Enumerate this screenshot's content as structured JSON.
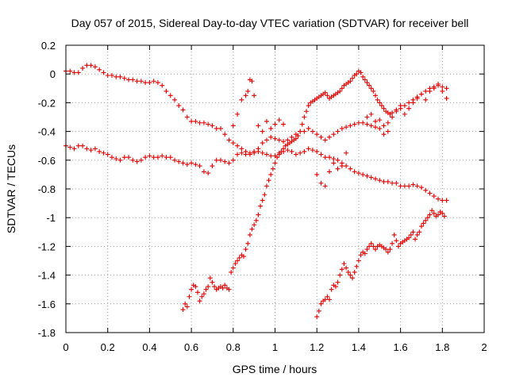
{
  "chart_data": {
    "type": "scatter",
    "title": "Day 057 of 2015, Sidereal Day-to-day VTEC variation (SDTVAR) for receiver bell",
    "xlabel": "GPS time / hours",
    "ylabel": "SDTVAR / TECUs",
    "xlim": [
      0,
      2
    ],
    "ylim": [
      -1.8,
      0.2
    ],
    "xticks": [
      0,
      0.2,
      0.4,
      0.6,
      0.8,
      1,
      1.2,
      1.4,
      1.6,
      1.8,
      2
    ],
    "xtick_labels": [
      "0",
      "0.2",
      "0.4",
      "0.6",
      "0.8",
      "1",
      "1.2",
      "1.4",
      "1.6",
      "1.8",
      "2"
    ],
    "yticks": [
      0.2,
      0,
      -0.2,
      -0.4,
      -0.6,
      -0.8,
      -1,
      -1.2,
      -1.4,
      -1.6,
      -1.8
    ],
    "ytick_labels": [
      "0.2",
      "0",
      "-0.2",
      "-0.4",
      "-0.6",
      "-0.8",
      "-1",
      "-1.2",
      "-1.4",
      "-1.6",
      "-1.8"
    ],
    "grid": true,
    "marker": "+",
    "color": "#e00000",
    "series": [
      {
        "x": [
          0.0,
          0.02,
          0.04,
          0.06,
          0.08,
          0.1,
          0.12,
          0.14,
          0.16,
          0.18,
          0.2,
          0.22,
          0.24,
          0.26,
          0.28,
          0.3,
          0.32,
          0.34,
          0.36,
          0.38,
          0.4,
          0.42,
          0.44,
          0.46,
          0.48,
          0.5,
          0.52,
          0.54,
          0.56,
          0.58,
          0.6,
          0.62,
          0.64,
          0.66,
          0.68,
          0.7,
          0.72,
          0.74,
          0.76,
          0.78,
          0.8,
          0.82,
          0.84,
          0.86,
          0.88,
          0.9,
          0.92,
          0.94,
          0.96,
          0.98,
          1.0,
          1.02,
          1.04,
          1.06,
          1.08,
          1.1,
          1.12,
          1.14,
          1.16,
          1.18,
          1.2,
          1.22,
          1.24,
          1.26,
          1.28,
          1.3,
          1.32,
          1.34,
          1.36,
          1.38,
          1.4,
          1.42,
          1.44,
          1.46,
          1.48,
          1.5,
          1.52,
          1.54,
          1.56,
          1.58,
          1.6,
          1.62,
          1.64,
          1.66,
          1.68,
          1.7,
          1.72,
          1.74,
          1.76,
          1.78,
          1.8,
          1.82
        ],
        "y": [
          0.02,
          0.02,
          0.01,
          0.01,
          0.04,
          0.06,
          0.06,
          0.05,
          0.03,
          0.01,
          -0.01,
          -0.01,
          -0.02,
          -0.02,
          -0.03,
          -0.04,
          -0.04,
          -0.05,
          -0.05,
          -0.06,
          -0.06,
          -0.05,
          -0.06,
          -0.08,
          -0.12,
          -0.15,
          -0.18,
          -0.22,
          -0.25,
          -0.3,
          -0.33,
          -0.33,
          -0.34,
          -0.34,
          -0.35,
          -0.36,
          -0.38,
          -0.38,
          -0.42,
          -0.46,
          -0.48,
          -0.5,
          -0.52,
          -0.54,
          -0.55,
          -0.54,
          -0.52,
          -0.48,
          -0.46,
          -0.44,
          -0.45,
          -0.46,
          -0.47,
          -0.46,
          -0.44,
          -0.42,
          -0.4,
          -0.4,
          -0.38,
          -0.4,
          -0.42,
          -0.44,
          -0.46,
          -0.44,
          -0.42,
          -0.4,
          -0.38,
          -0.37,
          -0.36,
          -0.35,
          -0.34,
          -0.34,
          -0.35,
          -0.36,
          -0.37,
          -0.38,
          -0.36,
          -0.34,
          -0.3,
          -0.26,
          -0.24,
          -0.22,
          -0.2,
          -0.18,
          -0.16,
          -0.14,
          -0.12,
          -0.1,
          -0.09,
          -0.08,
          -0.09,
          -0.1
        ]
      },
      {
        "x": [
          0.0,
          0.02,
          0.04,
          0.06,
          0.08,
          0.1,
          0.12,
          0.14,
          0.16,
          0.18,
          0.2,
          0.22,
          0.24,
          0.26,
          0.28,
          0.3,
          0.32,
          0.34,
          0.36,
          0.38,
          0.4,
          0.42,
          0.44,
          0.46,
          0.48,
          0.5,
          0.52,
          0.54,
          0.56,
          0.58,
          0.6,
          0.62,
          0.64,
          0.66,
          0.68,
          0.7,
          0.72,
          0.74,
          0.76,
          0.78,
          0.8,
          0.82,
          0.84,
          0.86,
          0.88,
          0.9,
          0.92,
          0.94,
          0.96,
          0.98,
          1.0,
          1.02,
          1.04,
          1.06,
          1.08,
          1.1,
          1.12,
          1.14,
          1.16,
          1.18,
          1.2,
          1.22,
          1.24,
          1.26,
          1.28,
          1.3,
          1.32,
          1.34,
          1.36,
          1.38,
          1.4,
          1.42,
          1.44,
          1.46,
          1.48,
          1.5,
          1.52,
          1.54,
          1.56,
          1.58,
          1.6,
          1.62,
          1.64,
          1.66,
          1.68,
          1.7,
          1.72,
          1.74,
          1.76,
          1.78,
          1.8,
          1.82
        ],
        "y": [
          -0.5,
          -0.51,
          -0.52,
          -0.5,
          -0.5,
          -0.52,
          -0.53,
          -0.52,
          -0.54,
          -0.55,
          -0.56,
          -0.58,
          -0.59,
          -0.6,
          -0.58,
          -0.58,
          -0.6,
          -0.61,
          -0.6,
          -0.58,
          -0.57,
          -0.58,
          -0.58,
          -0.57,
          -0.58,
          -0.58,
          -0.6,
          -0.61,
          -0.62,
          -0.63,
          -0.62,
          -0.63,
          -0.64,
          -0.68,
          -0.69,
          -0.64,
          -0.6,
          -0.6,
          -0.61,
          -0.62,
          -0.6,
          -0.56,
          -0.55,
          -0.56,
          -0.56,
          -0.55,
          -0.54,
          -0.55,
          -0.56,
          -0.57,
          -0.57,
          -0.55,
          -0.54,
          -0.53,
          -0.54,
          -0.56,
          -0.55,
          -0.54,
          -0.52,
          -0.53,
          -0.54,
          -0.56,
          -0.58,
          -0.58,
          -0.59,
          -0.6,
          -0.62,
          -0.64,
          -0.66,
          -0.68,
          -0.69,
          -0.7,
          -0.71,
          -0.72,
          -0.73,
          -0.74,
          -0.75,
          -0.75,
          -0.76,
          -0.76,
          -0.78,
          -0.78,
          -0.78,
          -0.77,
          -0.78,
          -0.79,
          -0.81,
          -0.83,
          -0.85,
          -0.87,
          -0.88,
          -0.88
        ]
      },
      {
        "x": [
          0.56,
          0.57,
          0.58,
          0.59,
          0.6,
          0.61,
          0.62,
          0.63,
          0.64,
          0.65,
          0.66,
          0.67,
          0.68,
          0.69,
          0.7,
          0.71,
          0.72,
          0.73,
          0.74,
          0.75,
          0.76,
          0.77,
          0.78,
          0.79,
          0.8,
          0.81,
          0.82,
          0.83,
          0.84,
          0.85,
          0.86,
          0.87,
          0.88,
          0.89,
          0.9,
          0.91,
          0.92,
          0.93,
          0.94,
          0.95,
          0.96,
          0.97,
          0.98,
          0.99,
          1.0,
          1.01,
          1.02,
          1.03,
          1.04,
          1.05,
          1.06,
          1.07,
          1.08,
          1.09,
          1.1,
          1.11,
          1.12,
          1.13,
          1.14,
          1.15,
          1.16,
          1.17,
          1.18,
          1.19,
          1.2,
          1.21,
          1.22,
          1.23,
          1.24,
          1.25,
          1.26,
          1.27,
          1.28,
          1.29,
          1.3,
          1.31,
          1.32,
          1.33,
          1.34,
          1.35,
          1.36,
          1.37,
          1.38,
          1.39,
          1.4,
          1.41,
          1.42,
          1.43,
          1.44,
          1.45,
          1.46,
          1.47,
          1.48,
          1.49,
          1.5,
          1.51,
          1.52,
          1.53,
          1.54,
          1.55,
          1.56
        ],
        "y": [
          -1.64,
          -1.6,
          -1.62,
          -1.55,
          -1.5,
          -1.47,
          -1.48,
          -1.52,
          -1.58,
          -1.55,
          -1.53,
          -1.5,
          -1.48,
          -1.42,
          -1.45,
          -1.48,
          -1.5,
          -1.49,
          -1.48,
          -1.49,
          -1.47,
          -1.49,
          -1.5,
          -1.38,
          -1.35,
          -1.32,
          -1.3,
          -1.28,
          -1.26,
          -1.27,
          -1.22,
          -1.18,
          -1.12,
          -1.08,
          -1.05,
          -1.02,
          -0.98,
          -0.92,
          -0.88,
          -0.84,
          -0.78,
          -0.74,
          -0.7,
          -0.66,
          -0.62,
          -0.58,
          -0.56,
          -0.54,
          -0.52,
          -0.5,
          -0.49,
          -0.48,
          -0.47,
          -0.46,
          -0.45,
          -0.43,
          -0.4,
          -0.35,
          -0.3,
          -0.26,
          -0.22,
          -0.2,
          -0.19,
          -0.18,
          -0.17,
          -0.16,
          -0.15,
          -0.14,
          -0.13,
          -0.15,
          -0.17,
          -0.16,
          -0.15,
          -0.14,
          -0.13,
          -0.12,
          -0.1,
          -0.08,
          -0.07,
          -0.06,
          -0.05,
          -0.03,
          -0.01,
          0.0,
          0.02,
          0.01,
          -0.02,
          -0.04,
          -0.06,
          -0.08,
          -0.1,
          -0.12,
          -0.15,
          -0.18,
          -0.2,
          -0.22,
          -0.24,
          -0.26,
          -0.27,
          -0.28,
          -0.3
        ]
      },
      {
        "x": [
          1.2,
          1.21,
          1.22,
          1.23,
          1.24,
          1.25,
          1.26,
          1.27,
          1.28,
          1.29,
          1.3,
          1.31,
          1.32,
          1.33,
          1.34,
          1.35,
          1.36,
          1.37,
          1.38,
          1.39,
          1.4,
          1.41,
          1.42,
          1.43,
          1.44,
          1.45,
          1.46,
          1.47,
          1.48,
          1.49,
          1.5,
          1.51,
          1.52,
          1.53,
          1.54,
          1.55,
          1.56,
          1.57,
          1.58,
          1.59,
          1.6,
          1.61,
          1.62,
          1.63,
          1.64,
          1.65,
          1.66,
          1.67,
          1.68,
          1.69,
          1.7,
          1.71,
          1.72,
          1.73,
          1.74,
          1.75,
          1.76,
          1.77,
          1.78,
          1.79,
          1.8,
          1.81
        ],
        "y": [
          -1.69,
          -1.65,
          -1.6,
          -1.58,
          -1.57,
          -1.55,
          -1.57,
          -1.5,
          -1.47,
          -1.48,
          -1.45,
          -1.4,
          -1.36,
          -1.32,
          -1.35,
          -1.38,
          -1.4,
          -1.42,
          -1.38,
          -1.34,
          -1.3,
          -1.26,
          -1.24,
          -1.25,
          -1.22,
          -1.2,
          -1.18,
          -1.2,
          -1.22,
          -1.2,
          -1.19,
          -1.2,
          -1.21,
          -1.22,
          -1.24,
          -1.22,
          -1.18,
          -1.12,
          -1.16,
          -1.2,
          -1.18,
          -1.17,
          -1.16,
          -1.15,
          -1.14,
          -1.12,
          -1.1,
          -1.15,
          -1.12,
          -1.1,
          -1.06,
          -1.04,
          -1.02,
          -1.0,
          -0.98,
          -0.95,
          -0.97,
          -0.99,
          -0.98,
          -0.96,
          -0.97,
          -0.99
        ]
      },
      {
        "x": [
          0.8,
          0.82,
          0.84,
          0.86,
          0.87,
          0.88,
          0.89,
          0.9,
          0.92,
          0.94,
          0.96,
          0.98,
          1.0,
          1.02,
          1.04,
          1.2,
          1.22,
          1.24,
          1.26,
          1.28,
          1.3,
          1.32,
          1.34,
          1.44,
          1.46,
          1.48,
          1.5,
          1.52,
          1.54,
          1.56,
          1.58,
          1.6,
          1.62,
          1.64,
          1.66,
          1.68,
          1.7,
          1.72,
          1.74,
          1.76,
          1.78,
          1.8,
          1.82
        ],
        "y": [
          -0.36,
          -0.28,
          -0.18,
          -0.15,
          -0.12,
          -0.04,
          -0.05,
          -0.15,
          -0.36,
          -0.4,
          -0.33,
          -0.38,
          -0.35,
          -0.32,
          -0.35,
          -0.7,
          -0.76,
          -0.78,
          -0.68,
          -0.62,
          -0.66,
          -0.64,
          -0.55,
          -0.3,
          -0.28,
          -0.33,
          -0.32,
          -0.42,
          -0.4,
          -0.27,
          -0.25,
          -0.22,
          -0.28,
          -0.24,
          -0.2,
          -0.17,
          -0.14,
          -0.18,
          -0.12,
          -0.1,
          -0.07,
          -0.12,
          -0.17
        ]
      }
    ]
  }
}
